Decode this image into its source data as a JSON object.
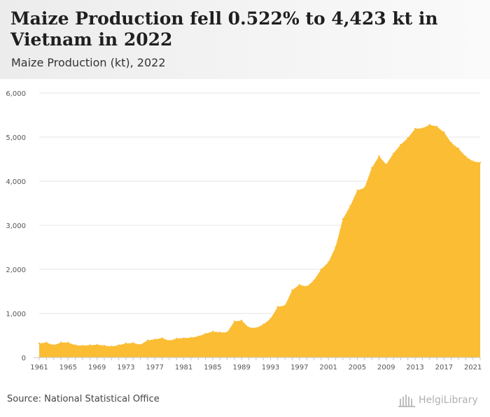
{
  "header": {
    "title": "Maize Production fell 0.522% to 4,423 kt in Vietnam in 2022",
    "subtitle": "Maize Production (kt), 2022"
  },
  "footer": {
    "source": "Source: National Statistical Office",
    "logo_text": "HelgiLibrary"
  },
  "colors": {
    "area_fill": "#fbbd34",
    "grid": "#e6e6e6",
    "header_bg": "#eeeeee"
  },
  "chart_data": {
    "type": "area",
    "title": "Maize Production fell 0.522% to 4,423 kt in Vietnam in 2022",
    "subtitle": "Maize Production (kt), 2022",
    "xlabel": "",
    "ylabel": "",
    "ylim": [
      0,
      6000
    ],
    "xlim": [
      1961,
      2022
    ],
    "grid": true,
    "y_ticks": [
      "0",
      "1,000",
      "2,000",
      "3,000",
      "4,000",
      "5,000",
      "6,000"
    ],
    "x_ticks": [
      "1961",
      "1965",
      "1969",
      "1973",
      "1977",
      "1981",
      "1985",
      "1989",
      "1993",
      "1997",
      "2001",
      "2005",
      "2009",
      "2013",
      "2017",
      "2021"
    ],
    "x": [
      1961,
      1962,
      1963,
      1964,
      1965,
      1966,
      1967,
      1968,
      1969,
      1970,
      1971,
      1972,
      1973,
      1974,
      1975,
      1976,
      1977,
      1978,
      1979,
      1980,
      1981,
      1982,
      1983,
      1984,
      1985,
      1986,
      1987,
      1988,
      1989,
      1990,
      1991,
      1992,
      1993,
      1994,
      1995,
      1996,
      1997,
      1998,
      1999,
      2000,
      2001,
      2002,
      2003,
      2004,
      2005,
      2006,
      2007,
      2008,
      2009,
      2010,
      2011,
      2012,
      2013,
      2014,
      2015,
      2016,
      2017,
      2018,
      2019,
      2020,
      2021,
      2022
    ],
    "values": [
      320,
      340,
      280,
      340,
      340,
      280,
      270,
      280,
      290,
      270,
      250,
      280,
      320,
      330,
      290,
      390,
      410,
      440,
      380,
      430,
      440,
      450,
      480,
      540,
      590,
      570,
      570,
      820,
      840,
      680,
      670,
      750,
      880,
      1150,
      1180,
      1530,
      1650,
      1610,
      1750,
      2000,
      2160,
      2510,
      3140,
      3430,
      3790,
      3850,
      4300,
      4570,
      4380,
      4630,
      4830,
      4980,
      5190,
      5200,
      5280,
      5240,
      5110,
      4870,
      4740,
      4560,
      4450,
      4423
    ]
  }
}
